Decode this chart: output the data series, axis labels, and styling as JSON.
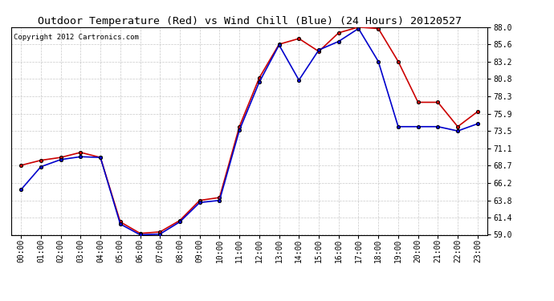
{
  "title": "Outdoor Temperature (Red) vs Wind Chill (Blue) (24 Hours) 20120527",
  "copyright": "Copyright 2012 Cartronics.com",
  "x_labels": [
    "00:00",
    "01:00",
    "02:00",
    "03:00",
    "04:00",
    "05:00",
    "06:00",
    "07:00",
    "08:00",
    "09:00",
    "10:00",
    "11:00",
    "12:00",
    "13:00",
    "14:00",
    "15:00",
    "16:00",
    "17:00",
    "18:00",
    "19:00",
    "20:00",
    "21:00",
    "22:00",
    "23:00"
  ],
  "red_data": [
    68.7,
    69.4,
    69.8,
    70.5,
    69.8,
    60.8,
    59.2,
    59.4,
    61.0,
    63.8,
    64.2,
    74.1,
    80.9,
    85.6,
    86.4,
    84.6,
    87.2,
    88.0,
    87.8,
    83.2,
    77.5,
    77.5,
    74.1,
    76.2
  ],
  "blue_data": [
    65.3,
    68.5,
    69.5,
    69.9,
    69.8,
    60.5,
    59.0,
    59.1,
    60.8,
    63.5,
    63.8,
    73.6,
    80.3,
    85.5,
    80.6,
    84.8,
    86.0,
    87.8,
    83.2,
    74.1,
    74.1,
    74.1,
    73.5,
    74.5
  ],
  "ylim_min": 59.0,
  "ylim_max": 88.0,
  "yticks": [
    59.0,
    61.4,
    63.8,
    66.2,
    68.7,
    71.1,
    73.5,
    75.9,
    78.3,
    80.8,
    83.2,
    85.6,
    88.0
  ],
  "bg_color": "#ffffff",
  "grid_color": "#bbbbbb",
  "red_color": "#cc0000",
  "blue_color": "#0000cc",
  "title_fontsize": 9.5,
  "copyright_fontsize": 6.5,
  "tick_fontsize": 7.0
}
